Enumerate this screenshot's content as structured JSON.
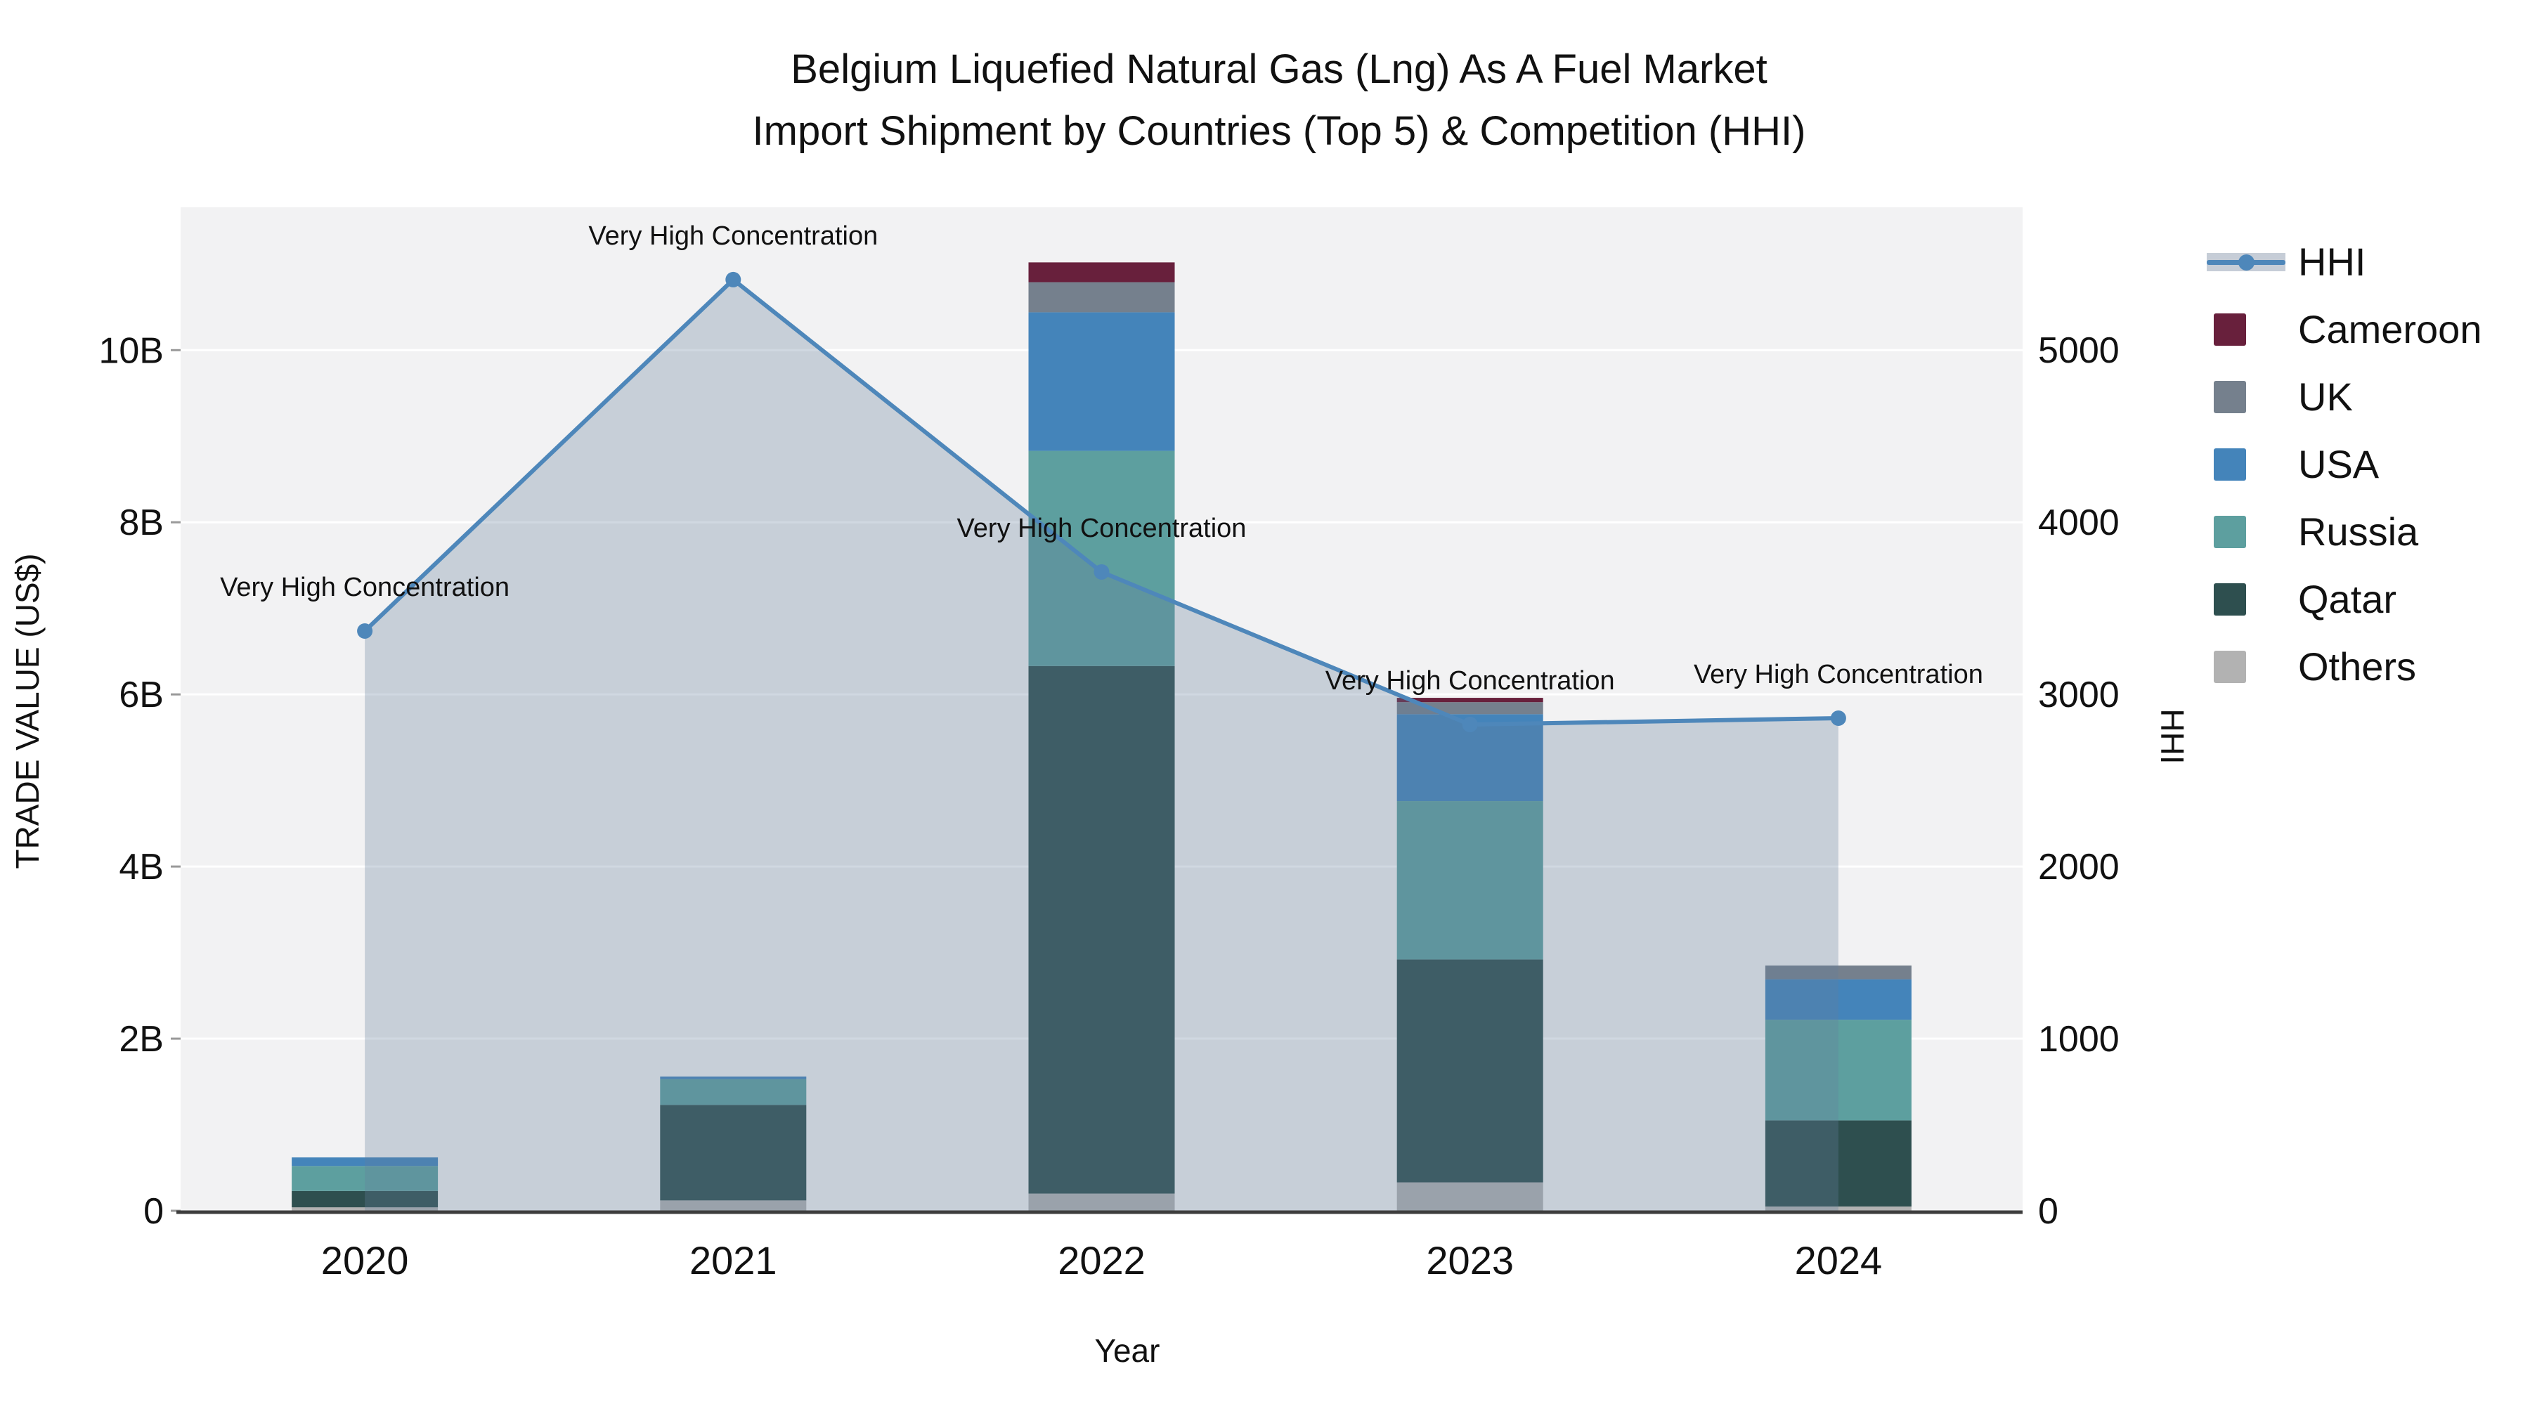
{
  "title": {
    "line1": "Belgium Liquefied Natural Gas (Lng) As A Fuel Market",
    "line2": "Import Shipment by Countries (Top 5) & Competition (HHI)"
  },
  "chart_data": {
    "type": "bar",
    "subtype": "stacked-bars-with-line-overlay",
    "categories": [
      "2020",
      "2021",
      "2022",
      "2023",
      "2024"
    ],
    "bar_value_unit": "billions US$",
    "series": [
      {
        "name": "Others",
        "color": "#b2b2b2",
        "values": [
          0.04,
          0.12,
          0.2,
          0.33,
          0.05
        ]
      },
      {
        "name": "Qatar",
        "color": "#2e4f4f",
        "values": [
          0.19,
          1.11,
          6.13,
          2.59,
          1.0
        ]
      },
      {
        "name": "Russia",
        "color": "#5d9f9f",
        "values": [
          0.29,
          0.3,
          2.5,
          1.84,
          1.17
        ]
      },
      {
        "name": "USA",
        "color": "#4484ba",
        "values": [
          0.1,
          0.03,
          1.61,
          1.01,
          0.47
        ]
      },
      {
        "name": "UK",
        "color": "#75808d",
        "values": [
          0.0,
          0.0,
          0.35,
          0.14,
          0.16
        ]
      },
      {
        "name": "Cameroon",
        "color": "#68203c",
        "values": [
          0.0,
          0.0,
          0.23,
          0.05,
          0.0
        ]
      }
    ],
    "line": {
      "name": "HHI",
      "color": "#4e87ba",
      "area_color": "rgba(100,125,155,0.30)",
      "values": [
        3367,
        5408,
        3710,
        2824,
        2861
      ]
    },
    "annotations": [
      "Very High Concentration",
      "Very High Concentration",
      "Very High Concentration",
      "Very High Concentration",
      "Very High Concentration"
    ],
    "x_axis": {
      "label": "Year"
    },
    "left_axis": {
      "label": "TRADE VALUE (US$)",
      "tick_values": [
        0,
        2,
        4,
        6,
        8,
        10
      ],
      "tick_labels": [
        "0",
        "2B",
        "4B",
        "6B",
        "8B",
        "10B"
      ],
      "range": [
        0,
        11.66
      ]
    },
    "right_axis": {
      "label": "HHI",
      "tick_values": [
        0,
        1000,
        2000,
        3000,
        4000,
        5000
      ],
      "tick_labels": [
        "0",
        "1000",
        "2000",
        "3000",
        "4000",
        "5000"
      ],
      "range": [
        0,
        5828
      ]
    },
    "legend": {
      "position": "right",
      "entries": [
        {
          "label": "HHI",
          "type": "line",
          "color": "#4e87ba"
        },
        {
          "label": "Cameroon",
          "type": "square",
          "color": "#68203c"
        },
        {
          "label": "UK",
          "type": "square",
          "color": "#75808d"
        },
        {
          "label": "USA",
          "type": "square",
          "color": "#4484ba"
        },
        {
          "label": "Russia",
          "type": "square",
          "color": "#5d9f9f"
        },
        {
          "label": "Qatar",
          "type": "square",
          "color": "#2e4f4f"
        },
        {
          "label": "Others",
          "type": "square",
          "color": "#b2b2b2"
        }
      ]
    },
    "grid": true,
    "plot_background": "#f2f2f3",
    "axis_line_color": "#3d3d3d"
  }
}
